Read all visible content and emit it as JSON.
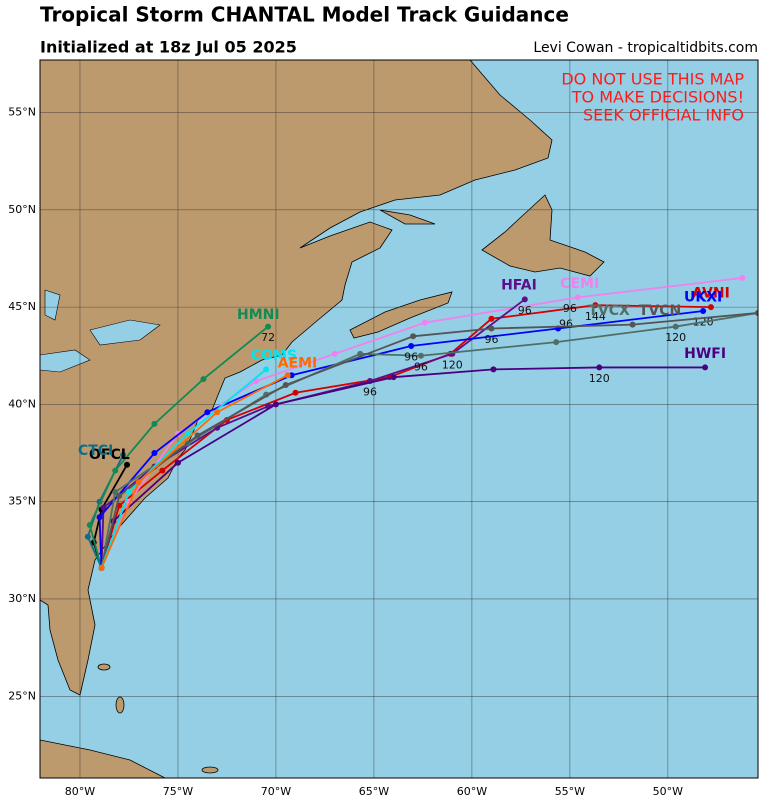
{
  "header": {
    "title": "Tropical Storm CHANTAL Model Track Guidance",
    "subtitle": "Initialized at 18z Jul 05 2025",
    "credit": "Levi Cowan - tropicaltidbits.com"
  },
  "warning": [
    "DO NOT USE THIS MAP",
    "TO MAKE DECISIONS!",
    "SEEK OFFICIAL INFO"
  ],
  "map": {
    "lon_range": [
      -82.04,
      -45.4
    ],
    "lat_range": [
      20.8,
      57.7
    ],
    "lon_ticks": [
      {
        "value": -80,
        "label": "80°W"
      },
      {
        "value": -75,
        "label": "75°W"
      },
      {
        "value": -70,
        "label": "70°W"
      },
      {
        "value": -65,
        "label": "65°W"
      },
      {
        "value": -60,
        "label": "60°W"
      },
      {
        "value": -55,
        "label": "55°W"
      },
      {
        "value": -50,
        "label": "50°W"
      }
    ],
    "lat_ticks": [
      {
        "value": 25,
        "label": "25°N"
      },
      {
        "value": 30,
        "label": "30°N"
      },
      {
        "value": 35,
        "label": "35°N"
      },
      {
        "value": 40,
        "label": "40°N"
      },
      {
        "value": 45,
        "label": "45°N"
      },
      {
        "value": 50,
        "label": "50°N"
      },
      {
        "value": 55,
        "label": "55°N"
      }
    ]
  },
  "tracks": [
    {
      "name": "OFCL",
      "color": "#000000",
      "label_at": [
        -78.5,
        37.4
      ],
      "points": [
        [
          -78.9,
          31.6
        ],
        [
          -79.3,
          32.9
        ],
        [
          -78.9,
          34.6
        ],
        [
          -77.6,
          36.9
        ]
      ],
      "hours": []
    },
    {
      "name": "CTCI",
      "color": "#0b6e8a",
      "label_at": [
        -79.2,
        37.6
      ],
      "points": [
        [
          -78.9,
          31.6
        ],
        [
          -79.6,
          33.2
        ],
        [
          -79.0,
          35.0
        ],
        [
          -77.8,
          37.4
        ]
      ],
      "hours": []
    },
    {
      "name": "HMNI",
      "color": "#128a55",
      "label_at": [
        -70.9,
        44.6
      ],
      "points": [
        [
          -78.9,
          31.6
        ],
        [
          -79.5,
          33.8
        ],
        [
          -78.2,
          36.6
        ],
        [
          -76.2,
          39.0
        ],
        [
          -73.7,
          41.3
        ],
        [
          -70.4,
          44.0
        ]
      ],
      "hours": [
        {
          "hour": 72,
          "at": [
            -70.4,
            43.4
          ]
        }
      ]
    },
    {
      "name": "AVNI",
      "color": "#d50000",
      "label_at": [
        -47.8,
        45.7
      ],
      "points": [
        [
          -78.9,
          31.6
        ],
        [
          -78.0,
          34.8
        ],
        [
          -75.8,
          36.6
        ],
        [
          -72.5,
          39.2
        ],
        [
          -69.0,
          40.6
        ],
        [
          -64.2,
          41.4
        ],
        [
          -61.1,
          42.6
        ],
        [
          -59.0,
          44.4
        ],
        [
          -53.7,
          45.1
        ],
        [
          -47.8,
          45.0
        ]
      ],
      "hours": [
        {
          "hour": 120,
          "at": [
            -61.0,
            42.0
          ]
        },
        {
          "hour": 144,
          "at": [
            -53.7,
            44.5
          ]
        }
      ]
    },
    {
      "name": "CEMI",
      "color": "#ee82ee",
      "label_at": [
        -54.5,
        46.2
      ],
      "points": [
        [
          -78.9,
          31.6
        ],
        [
          -77.5,
          35.0
        ],
        [
          -75.0,
          38.5
        ],
        [
          -71.0,
          41.2
        ],
        [
          -67.0,
          42.6
        ],
        [
          -62.4,
          44.2
        ],
        [
          -54.6,
          45.5
        ],
        [
          -46.2,
          46.5
        ]
      ],
      "hours": [
        {
          "hour": 96,
          "at": [
            -55.0,
            44.9
          ]
        }
      ]
    },
    {
      "name": "HFAI",
      "color": "#5b0f8a",
      "label_at": [
        -57.6,
        46.1
      ],
      "points": [
        [
          -78.9,
          31.6
        ],
        [
          -78.8,
          34.7
        ],
        [
          -76.2,
          36.8
        ],
        [
          -73.0,
          38.8
        ],
        [
          -70.4,
          39.9
        ],
        [
          -65.2,
          41.2
        ],
        [
          -61.0,
          42.6
        ],
        [
          -57.3,
          45.4
        ]
      ],
      "hours": [
        {
          "hour": 96,
          "at": [
            -65.2,
            40.6
          ]
        },
        {
          "hour": 96,
          "at": [
            -57.3,
            44.8
          ]
        }
      ]
    },
    {
      "name": "HWFI",
      "color": "#4b0082",
      "label_at": [
        -48.1,
        42.6
      ],
      "points": [
        [
          -78.9,
          31.6
        ],
        [
          -78.3,
          34.0
        ],
        [
          -75.0,
          37.0
        ],
        [
          -70.0,
          40.0
        ],
        [
          -64.0,
          41.4
        ],
        [
          -58.9,
          41.8
        ],
        [
          -53.5,
          41.9
        ],
        [
          -48.1,
          41.9
        ]
      ],
      "hours": [
        {
          "hour": 120,
          "at": [
            -53.5,
            41.3
          ]
        }
      ]
    },
    {
      "name": "UKXI",
      "color": "#0000ff",
      "label_at": [
        -48.2,
        45.5
      ],
      "points": [
        [
          -78.9,
          31.6
        ],
        [
          -79.0,
          34.2
        ],
        [
          -76.2,
          37.5
        ],
        [
          -73.5,
          39.6
        ],
        [
          -69.2,
          41.5
        ],
        [
          -63.1,
          43.0
        ],
        [
          -55.6,
          43.9
        ],
        [
          -48.2,
          44.8
        ]
      ],
      "hours": [
        {
          "hour": 96,
          "at": [
            -55.2,
            44.1
          ]
        },
        {
          "hour": 120,
          "at": [
            -48.2,
            44.2
          ]
        }
      ]
    },
    {
      "name": "TVCX",
      "color": "#4f6f66",
      "label_at": [
        -53.0,
        44.8
      ],
      "points": [
        [
          -78.9,
          31.6
        ],
        [
          -78.2,
          35.5
        ],
        [
          -74.5,
          38.0
        ],
        [
          -70.5,
          40.5
        ],
        [
          -65.7,
          42.6
        ],
        [
          -62.6,
          42.5
        ],
        [
          -55.7,
          43.2
        ],
        [
          -49.6,
          44.0
        ],
        [
          -45.4,
          44.7
        ]
      ],
      "hours": [
        {
          "hour": 96,
          "at": [
            -62.6,
            41.9
          ]
        },
        {
          "hour": 120,
          "at": [
            -49.6,
            43.4
          ]
        }
      ]
    },
    {
      "name": "TVCN",
      "color": "#555555",
      "label_at": [
        -50.4,
        44.8
      ],
      "points": [
        [
          -78.9,
          31.6
        ],
        [
          -78.0,
          35.3
        ],
        [
          -74.0,
          38.4
        ],
        [
          -69.5,
          41.0
        ],
        [
          -63.0,
          43.5
        ],
        [
          -59.0,
          43.9
        ],
        [
          -51.8,
          44.1
        ],
        [
          -45.4,
          44.7
        ]
      ],
      "hours": [
        {
          "hour": 96,
          "at": [
            -63.1,
            42.4
          ]
        },
        {
          "hour": 96,
          "at": [
            -59.0,
            43.3
          ]
        }
      ]
    },
    {
      "name": "COMS",
      "color": "#00e5ee",
      "label_at": [
        -70.1,
        42.5
      ],
      "points": [
        [
          -78.9,
          31.6
        ],
        [
          -77.5,
          35.5
        ],
        [
          -74.5,
          38.5
        ],
        [
          -70.5,
          41.8
        ]
      ],
      "hours": []
    },
    {
      "name": "AEMI",
      "color": "#ff6a00",
      "label_at": [
        -68.9,
        42.1
      ],
      "points": [
        [
          -78.9,
          31.6
        ],
        [
          -77.0,
          36.0
        ],
        [
          -73.0,
          39.6
        ],
        [
          -69.4,
          41.5
        ]
      ],
      "hours": []
    }
  ]
}
